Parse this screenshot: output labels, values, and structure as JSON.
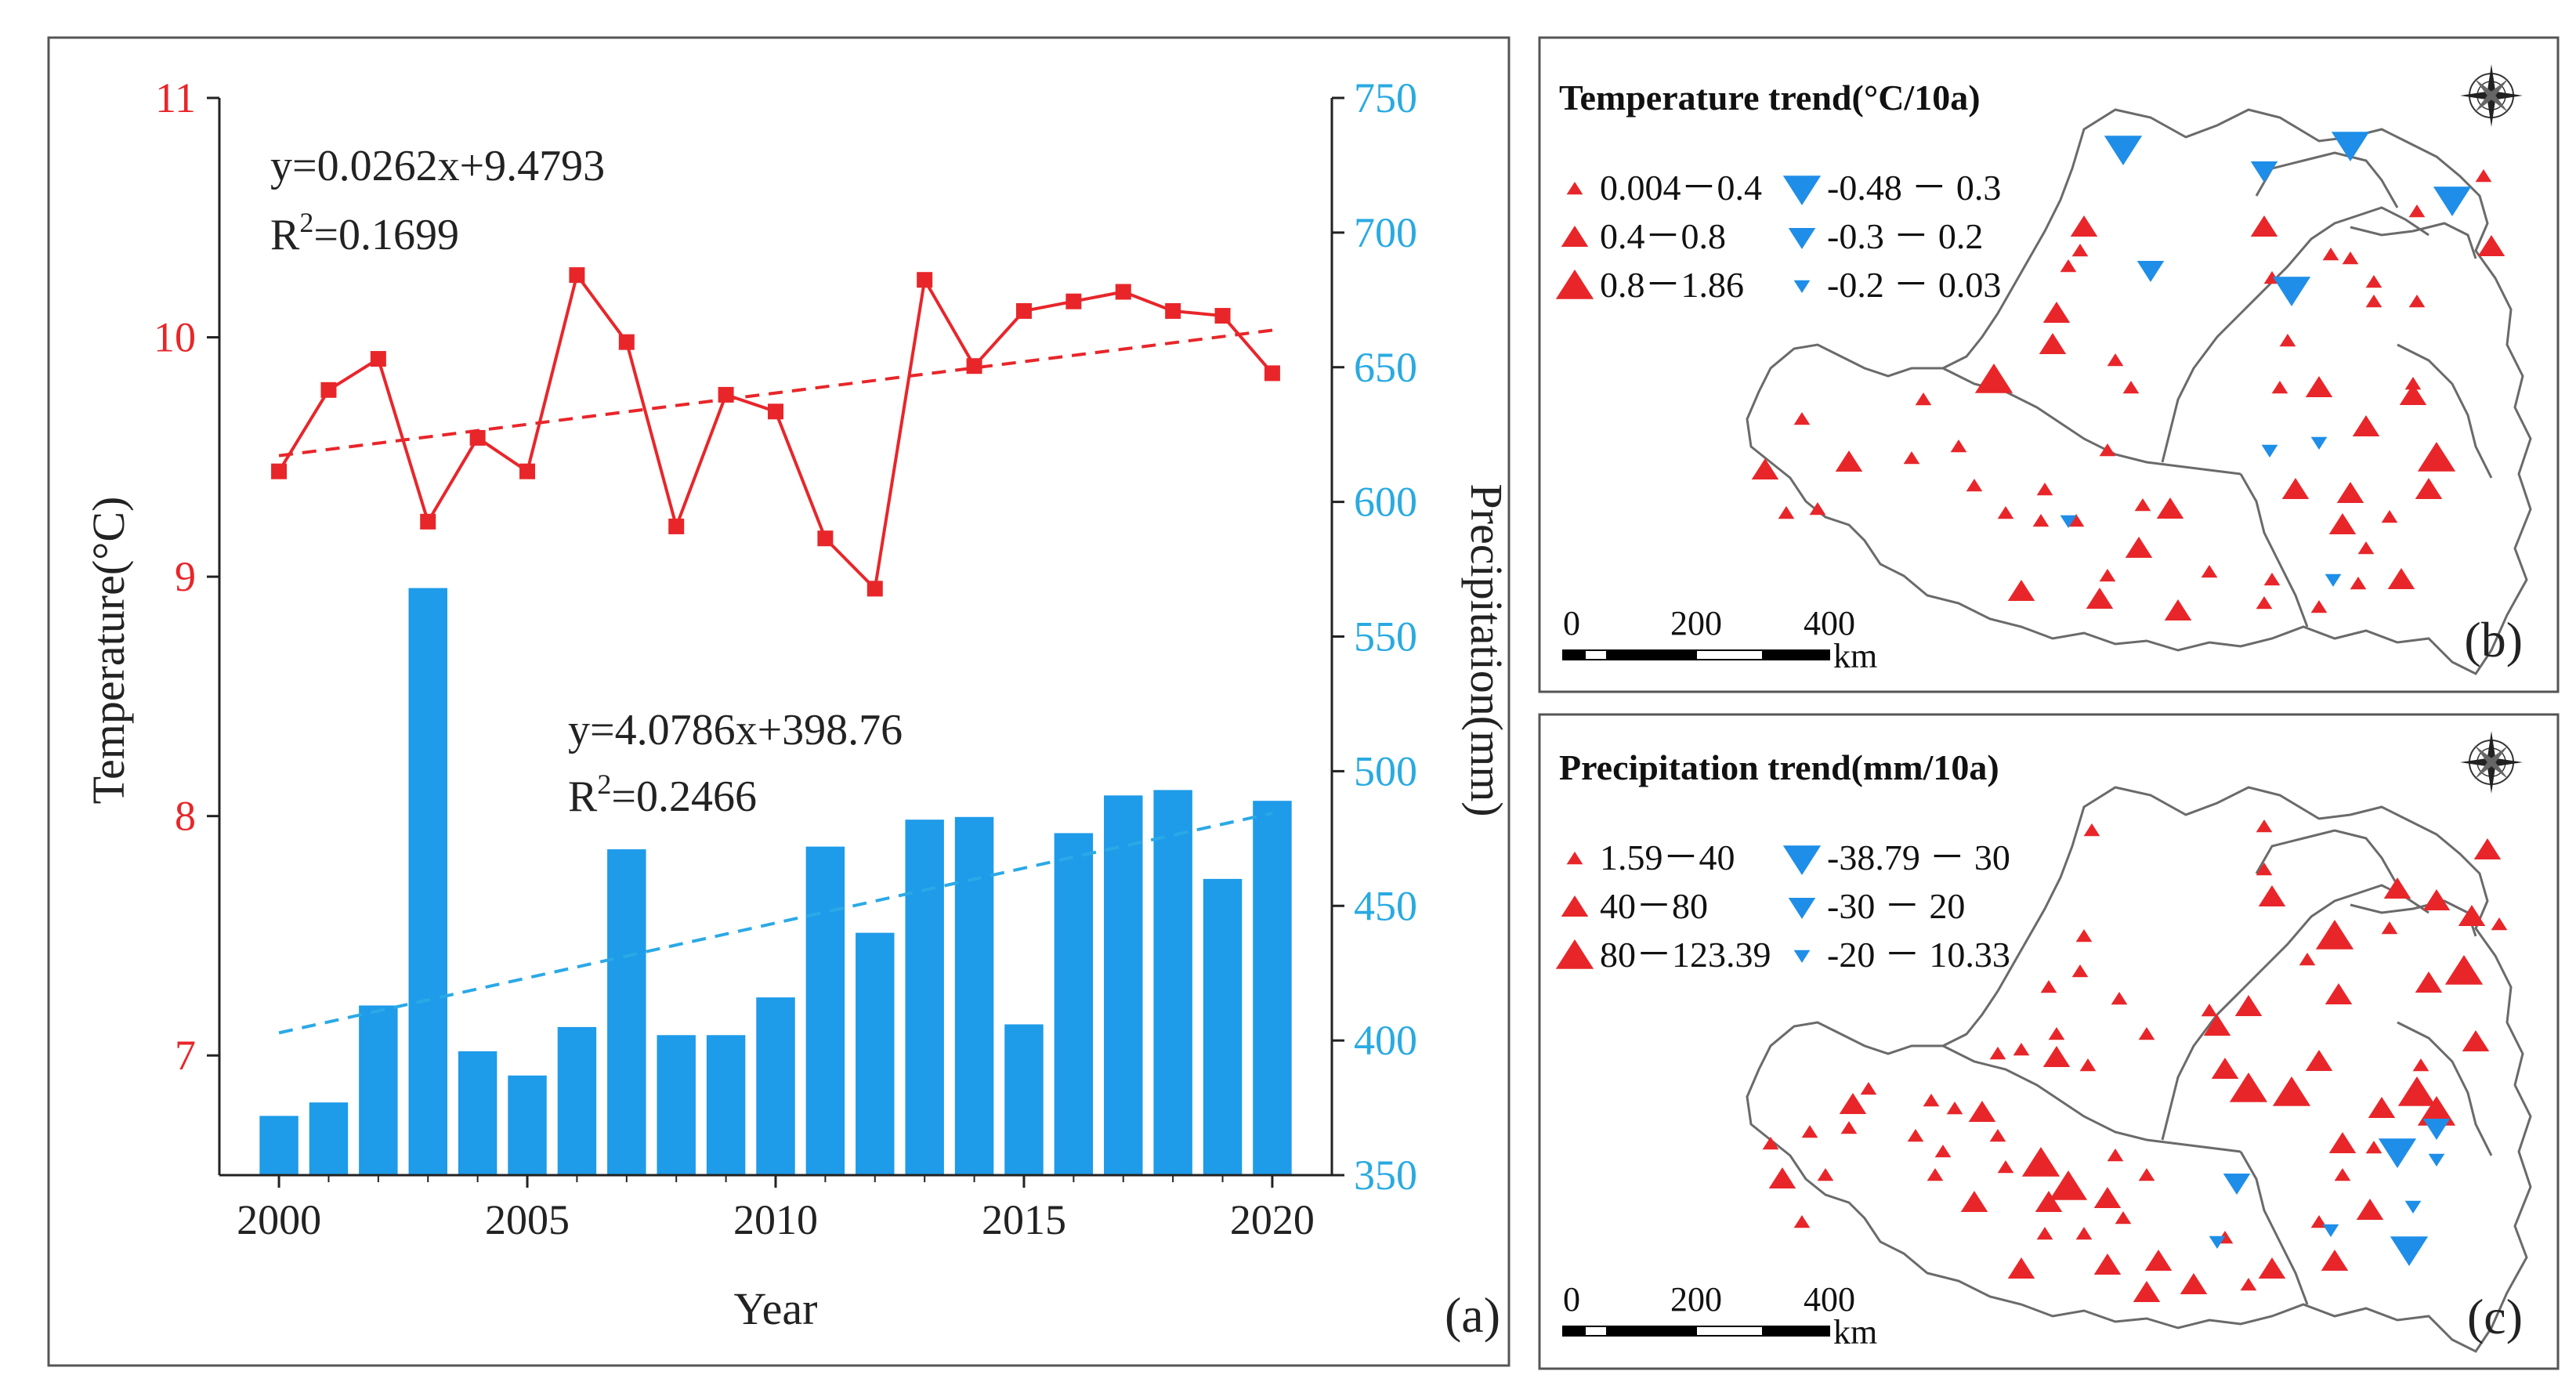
{
  "chart_data": [
    {
      "type": "bar+line",
      "panel_label": "(a)",
      "xlabel": "Year",
      "ylabel_left": "Temperature(°C)",
      "ylabel_right": "Precipitation(mm)",
      "x_range": [
        1998.8,
        2021.2
      ],
      "x_ticks": [
        2000,
        2005,
        2010,
        2015,
        2020
      ],
      "y_left_range": [
        6.5,
        11
      ],
      "y_left_ticks": [
        7,
        8,
        9,
        10,
        11
      ],
      "y_right_range": [
        350,
        750
      ],
      "y_right_ticks": [
        350,
        400,
        450,
        500,
        550,
        600,
        650,
        700,
        750
      ],
      "years": [
        2000,
        2001,
        2002,
        2003,
        2004,
        2005,
        2006,
        2007,
        2008,
        2009,
        2010,
        2011,
        2012,
        2013,
        2014,
        2015,
        2016,
        2017,
        2018,
        2019,
        2020
      ],
      "series": [
        {
          "name": "Temperature",
          "axis": "left",
          "kind": "line",
          "color": "#e8262a",
          "values": [
            9.44,
            9.78,
            9.91,
            9.23,
            9.58,
            9.44,
            10.26,
            9.98,
            9.21,
            9.76,
            9.69,
            9.16,
            8.95,
            10.24,
            9.88,
            10.11,
            10.15,
            10.19,
            10.11,
            10.09,
            9.85
          ]
        },
        {
          "name": "Precipitation",
          "axis": "right",
          "kind": "bar",
          "color": "#1e9be9",
          "values": [
            372,
            377,
            413,
            568,
            396,
            387,
            405,
            471,
            402,
            402,
            416,
            472,
            440,
            482,
            483,
            406,
            477,
            491,
            493,
            460,
            489
          ]
        }
      ],
      "trendlines": [
        {
          "series": "Temperature",
          "slope": 0.0262,
          "intercept": 9.4793,
          "color": "#e8262a",
          "equation": "y=0.0262x+9.4793",
          "r2_label": "R",
          "r2_exp": "2",
          "r2_value": "=0.1699"
        },
        {
          "series": "Precipitation",
          "slope": 4.0786,
          "intercept": 398.76,
          "color": "#2ba9e6",
          "equation": "y=4.0786x+398.76",
          "r2_label": "R",
          "r2_exp": "2",
          "r2_value": "=0.2466"
        }
      ]
    }
  ],
  "map_b": {
    "title": "Temperature  trend(°C/10a)",
    "panel_label": "(b)",
    "legend": [
      {
        "label": "0.004－0.4",
        "kind": "up",
        "size": "small"
      },
      {
        "label": "0.4－0.8",
        "kind": "up",
        "size": "medium"
      },
      {
        "label": "0.8－1.86",
        "kind": "up",
        "size": "large"
      },
      {
        "label": "-0.48 － 0.3",
        "kind": "down",
        "size": "large"
      },
      {
        "label": "-0.3 － 0.2",
        "kind": "down",
        "size": "medium"
      },
      {
        "label": "-0.2 － 0.03",
        "kind": "down",
        "size": "small"
      }
    ],
    "scale": {
      "ticks": [
        "0",
        "200",
        "400"
      ],
      "unit": "km"
    }
  },
  "map_c": {
    "title": "Precipitation  trend(mm/10a)",
    "panel_label": "(c)",
    "legend": [
      {
        "label": "1.59－40",
        "kind": "up",
        "size": "small"
      },
      {
        "label": "40－80",
        "kind": "up",
        "size": "medium"
      },
      {
        "label": "80－123.39",
        "kind": "up",
        "size": "large"
      },
      {
        "label": "-38.79 － 30",
        "kind": "down",
        "size": "large"
      },
      {
        "label": "-30 － 20",
        "kind": "down",
        "size": "medium"
      },
      {
        "label": "-20 － 10.33",
        "kind": "down",
        "size": "small"
      }
    ],
    "scale": {
      "ticks": [
        "0",
        "200",
        "400"
      ],
      "unit": "km"
    }
  },
  "colors": {
    "up": "#e8262a",
    "down": "#1e8ee8",
    "axis_left": "#e8262a",
    "axis_right": "#29aae1"
  }
}
